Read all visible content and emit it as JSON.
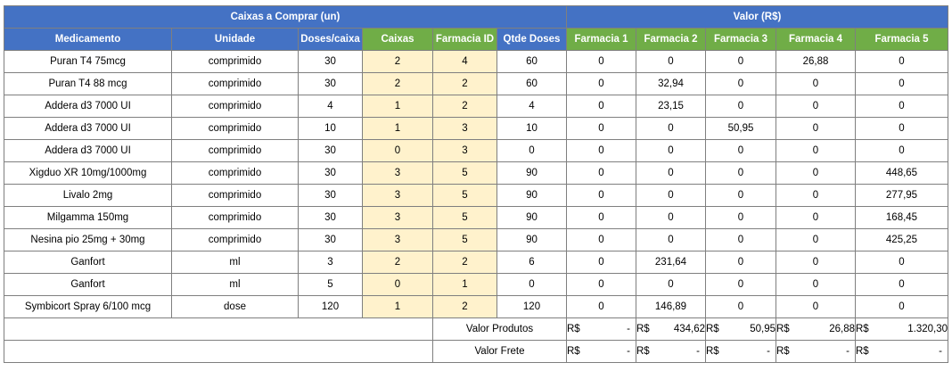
{
  "header": {
    "left_group": "Caixas a Comprar (un)",
    "right_group": "Valor (R$)"
  },
  "columns": [
    "Medicamento",
    "Unidade",
    "Doses/caixa",
    "Caixas",
    "Farmacia ID",
    "Qtde Doses",
    "Farmacia 1",
    "Farmacia 2",
    "Farmacia 3",
    "Farmacia 4",
    "Farmacia 5"
  ],
  "rows": [
    [
      "Puran T4 75mcg",
      "comprimido",
      "30",
      "2",
      "4",
      "60",
      "0",
      "0",
      "0",
      "26,88",
      "0"
    ],
    [
      "Puran T4 88 mcg",
      "comprimido",
      "30",
      "2",
      "2",
      "60",
      "0",
      "32,94",
      "0",
      "0",
      "0"
    ],
    [
      "Addera d3 7000 UI",
      "comprimido",
      "4",
      "1",
      "2",
      "4",
      "0",
      "23,15",
      "0",
      "0",
      "0"
    ],
    [
      "Addera d3 7000 UI",
      "comprimido",
      "10",
      "1",
      "3",
      "10",
      "0",
      "0",
      "50,95",
      "0",
      "0"
    ],
    [
      "Addera d3 7000 UI",
      "comprimido",
      "30",
      "0",
      "3",
      "0",
      "0",
      "0",
      "0",
      "0",
      "0"
    ],
    [
      "Xigduo XR 10mg/1000mg",
      "comprimido",
      "30",
      "3",
      "5",
      "90",
      "0",
      "0",
      "0",
      "0",
      "448,65"
    ],
    [
      "Livalo 2mg",
      "comprimido",
      "30",
      "3",
      "5",
      "90",
      "0",
      "0",
      "0",
      "0",
      "277,95"
    ],
    [
      "Milgamma 150mg",
      "comprimido",
      "30",
      "3",
      "5",
      "90",
      "0",
      "0",
      "0",
      "0",
      "168,45"
    ],
    [
      "Nesina pio 25mg + 30mg",
      "comprimido",
      "30",
      "3",
      "5",
      "90",
      "0",
      "0",
      "0",
      "0",
      "425,25"
    ],
    [
      "Ganfort",
      "ml",
      "3",
      "2",
      "2",
      "6",
      "0",
      "231,64",
      "0",
      "0",
      "0"
    ],
    [
      "Ganfort",
      "ml",
      "5",
      "0",
      "1",
      "0",
      "0",
      "0",
      "0",
      "0",
      "0"
    ],
    [
      "Symbicort Spray 6/100 mcg",
      "dose",
      "120",
      "1",
      "2",
      "120",
      "0",
      "146,89",
      "0",
      "0",
      "0"
    ]
  ],
  "summary": {
    "currency": "R$",
    "produtos_label": "Valor Produtos",
    "produtos": [
      "-",
      "434,62",
      "50,95",
      "26,88",
      "1.320,30"
    ],
    "frete_label": "Valor Frete",
    "frete": [
      "-",
      "-",
      "-",
      "-",
      "-"
    ]
  }
}
